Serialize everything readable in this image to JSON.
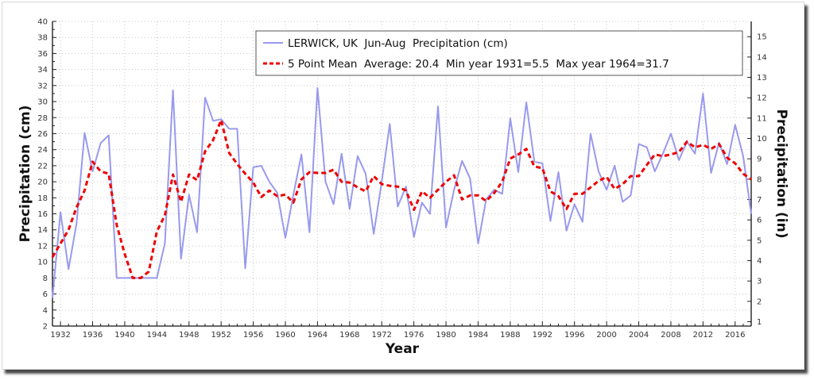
{
  "chart_data": {
    "type": "line",
    "title": "LERWICK, UK Jun-Aug Precipitation (cm)",
    "xlabel": "Year",
    "ylabel": "Precipitation (cm)",
    "ylabel_right": "Precipitation (in)",
    "xlim": [
      1931,
      2018
    ],
    "ylim": [
      2,
      40
    ],
    "ylim_right_in": [
      0.79,
      15.75
    ],
    "grid": true,
    "legend_position": "top-right",
    "x_ticks": [
      1932,
      1936,
      1940,
      1944,
      1948,
      1952,
      1956,
      1960,
      1964,
      1968,
      1972,
      1976,
      1980,
      1984,
      1988,
      1992,
      1996,
      2000,
      2004,
      2008,
      2012,
      2016
    ],
    "y_ticks": [
      2,
      4,
      6,
      8,
      10,
      12,
      14,
      16,
      18,
      20,
      22,
      24,
      26,
      28,
      30,
      32,
      34,
      36,
      38,
      40
    ],
    "y_ticks_right": [
      1,
      2,
      3,
      4,
      5,
      6,
      7,
      8,
      9,
      10,
      11,
      12,
      13,
      14,
      15
    ],
    "x": [
      1931,
      1932,
      1933,
      1934,
      1935,
      1936,
      1937,
      1938,
      1939,
      1940,
      1941,
      1942,
      1943,
      1944,
      1945,
      1946,
      1947,
      1948,
      1949,
      1950,
      1951,
      1952,
      1953,
      1954,
      1955,
      1956,
      1957,
      1958,
      1959,
      1960,
      1961,
      1962,
      1963,
      1964,
      1965,
      1966,
      1967,
      1968,
      1969,
      1970,
      1971,
      1972,
      1973,
      1974,
      1975,
      1976,
      1977,
      1978,
      1979,
      1980,
      1981,
      1982,
      1983,
      1984,
      1985,
      1986,
      1987,
      1988,
      1989,
      1990,
      1991,
      1992,
      1993,
      1994,
      1995,
      1996,
      1997,
      1998,
      1999,
      2000,
      2001,
      2002,
      2003,
      2004,
      2005,
      2006,
      2007,
      2008,
      2009,
      2010,
      2011,
      2012,
      2013,
      2014,
      2015,
      2016,
      2017,
      2018
    ],
    "series": [
      {
        "name": "LERWICK, UK  Jun-Aug  Precipitation (cm)",
        "color": "#9999ee",
        "style": "solid",
        "values": [
          5.5,
          16.2,
          9.1,
          14.8,
          26.1,
          21.3,
          24.8,
          25.8,
          8.0,
          8.0,
          8.0,
          8.0,
          8.0,
          8.0,
          12.3,
          31.4,
          10.4,
          18.4,
          13.7,
          30.5,
          27.6,
          27.8,
          26.6,
          26.6,
          9.2,
          21.8,
          22.0,
          20.0,
          18.6,
          13.0,
          18.4,
          23.4,
          13.7,
          31.7,
          20.0,
          17.2,
          23.5,
          16.6,
          23.2,
          21.0,
          13.5,
          20.0,
          27.2,
          16.9,
          19.4,
          13.1,
          17.4,
          16.0,
          29.4,
          14.3,
          19.0,
          22.6,
          20.4,
          12.3,
          17.8,
          19.0,
          18.5,
          27.9,
          21.2,
          29.9,
          22.5,
          22.3,
          15.1,
          21.2,
          13.9,
          17.2,
          15.0,
          26.0,
          21.3,
          19.0,
          22.0,
          17.5,
          18.3,
          24.7,
          24.3,
          21.3,
          23.5,
          26.0,
          22.7,
          25.0,
          23.5,
          31.0,
          21.1,
          24.9,
          22.2,
          27.1,
          23.2,
          16.0
        ]
      },
      {
        "name": "5 Point Mean  Average: 20.4  Min year 1931=5.5  Max year 1964=31.7",
        "color": "#ee0000",
        "style": "dashed",
        "values": [
          10.6,
          12.3,
          14.0,
          16.8,
          18.9,
          22.5,
          21.3,
          21.0,
          14.6,
          11.0,
          8.0,
          8.0,
          8.8,
          13.8,
          15.8,
          20.9,
          17.5,
          20.9,
          20.2,
          23.8,
          25.2,
          27.7,
          23.6,
          22.2,
          21.0,
          19.9,
          18.1,
          18.9,
          18.2,
          18.4,
          17.4,
          20.3,
          21.2,
          21.1,
          21.1,
          21.5,
          20.0,
          19.9,
          19.3,
          18.8,
          20.7,
          19.7,
          19.5,
          19.4,
          18.9,
          16.5,
          18.8,
          18.0,
          19.0,
          20.0,
          20.8,
          17.8,
          18.3,
          18.3,
          17.6,
          18.6,
          20.0,
          22.9,
          23.4,
          24.1,
          21.9,
          21.7,
          18.8,
          18.2,
          16.6,
          18.5,
          18.5,
          19.3,
          20.1,
          20.6,
          19.1,
          19.7,
          20.7,
          20.7,
          22.1,
          23.4,
          23.2,
          23.4,
          23.7,
          25.0,
          24.3,
          24.6,
          24.1,
          24.7,
          23.0,
          22.3,
          21.0,
          20.3
        ]
      }
    ],
    "stats": {
      "average": 20.4,
      "min_year": 1931,
      "min_value": 5.5,
      "max_year": 1964,
      "max_value": 31.7
    }
  },
  "legend": {
    "entries": [
      "LERWICK, UK  Jun-Aug  Precipitation (cm)",
      "5 Point Mean  Average: 20.4  Min year 1931=5.5  Max year 1964=31.7"
    ]
  }
}
